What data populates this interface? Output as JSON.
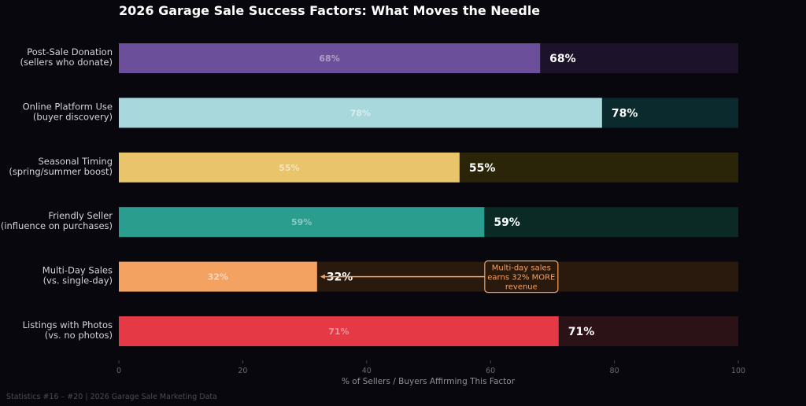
{
  "chart_data": {
    "type": "bar",
    "orientation": "horizontal",
    "title": "2026 Garage Sale Success Factors: What Moves the Needle",
    "xlabel": "% of Sellers / Buyers Affirming This Factor",
    "xlim": [
      0,
      100
    ],
    "xticks": [
      0,
      20,
      40,
      60,
      80,
      100
    ],
    "grid": false,
    "categories": [
      [
        "Post-Sale Donation",
        "(sellers who donate)"
      ],
      [
        "Online Platform Use",
        "(buyer discovery)"
      ],
      [
        "Seasonal Timing",
        "(spring/summer boost)"
      ],
      [
        "Friendly Seller",
        "(influence on purchases)"
      ],
      [
        "Multi-Day Sales",
        "(vs. single-day)"
      ],
      [
        "Listings with Photos",
        "(vs. no photos)"
      ]
    ],
    "values": [
      68,
      78,
      55,
      59,
      32,
      71
    ],
    "value_labels": [
      "68%",
      "78%",
      "55%",
      "59%",
      "32%",
      "71%"
    ],
    "colors": [
      "#6b4f9a",
      "#a8d8dc",
      "#e9c46a",
      "#2a9d8f",
      "#f4a261",
      "#e63946"
    ],
    "track_colors": [
      "#1c1229",
      "#0a2a2d",
      "#2a2509",
      "#0b2a26",
      "#2a1a0e",
      "#2a1216"
    ],
    "annotation": {
      "text": [
        "Multi-day sales",
        "earns 32% MORE",
        "revenue"
      ],
      "target_index": 4,
      "color": "#f4a261"
    },
    "footer": "Statistics #16 – #20  |  2026 Garage Sale Marketing Data"
  }
}
